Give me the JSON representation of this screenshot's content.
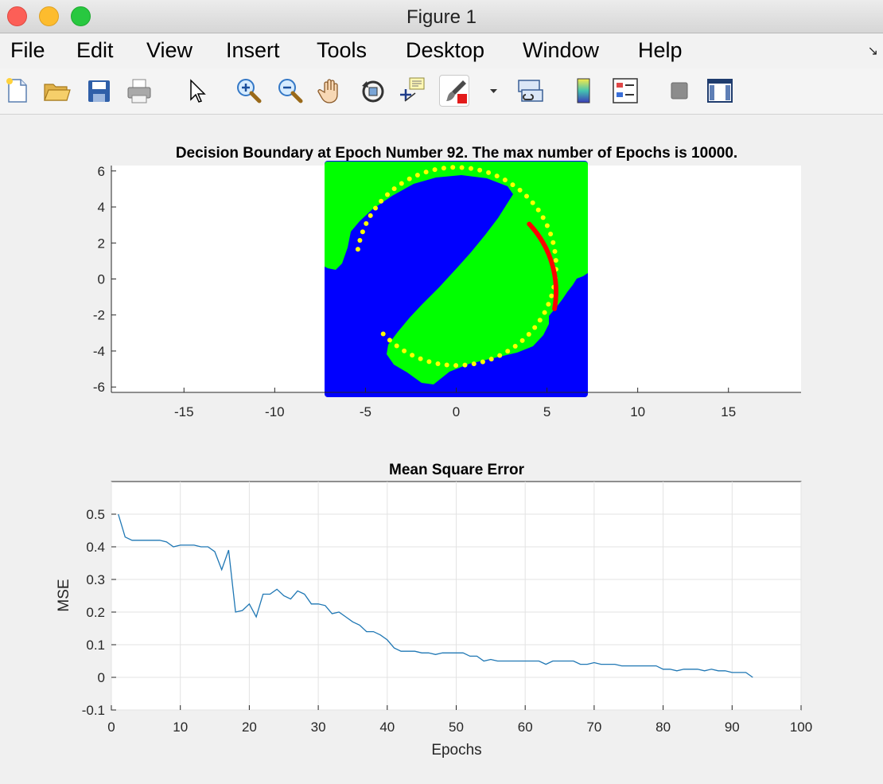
{
  "window": {
    "title": "Figure 1"
  },
  "menu": [
    "File",
    "Edit",
    "View",
    "Insert",
    "Tools",
    "Desktop",
    "Window",
    "Help"
  ],
  "toolbar_icons": [
    "new-figure-icon",
    "open-file-icon",
    "save-icon",
    "print-icon",
    "pointer-icon",
    "zoom-in-icon",
    "zoom-out-icon",
    "pan-hand-icon",
    "rotate-3d-icon",
    "data-cursor-icon",
    "brush-icon",
    "brush-dropdown-icon",
    "link-plot-icon",
    "colorbar-icon",
    "legend-icon",
    "hide-plot-tools-icon",
    "show-plot-tools-icon"
  ],
  "chart_data": [
    {
      "type": "scatter",
      "title": "Decision Boundary at Epoch Number 92. The max number of Epochs is 10000.",
      "xlim": [
        -19,
        19
      ],
      "ylim": [
        -6.3,
        6.3
      ],
      "xticks": [
        -15,
        -10,
        -5,
        0,
        5,
        10,
        15
      ],
      "yticks": [
        6,
        4,
        2,
        0,
        -2,
        -4,
        -6
      ],
      "region_colors": {
        "class_a": "#00ff00",
        "class_b": "#0000ff"
      },
      "series": [
        {
          "color": "#ffff00",
          "center": [
            0,
            0.7
          ],
          "radius": 5.5,
          "theta_start_deg": 170,
          "theta_end_deg": -137,
          "count": 60
        },
        {
          "color": "#ff0000",
          "center": [
            0,
            -0.7
          ],
          "radius": 5.5,
          "theta_start_deg": 43,
          "theta_end_deg": 350,
          "count": 60
        }
      ]
    },
    {
      "type": "line",
      "title": "Mean Square Error",
      "xlabel": "Epochs",
      "ylabel": "MSE",
      "xlim": [
        0,
        100
      ],
      "ylim": [
        -0.1,
        0.6
      ],
      "xticks": [
        0,
        10,
        20,
        30,
        40,
        50,
        60,
        70,
        80,
        90,
        100
      ],
      "yticks": [
        0.5,
        0.4,
        0.3,
        0.2,
        0.1,
        0,
        -0.1
      ],
      "grid": true,
      "line_color": "#1f77b4",
      "x_start": 1,
      "values": [
        0.5,
        0.43,
        0.42,
        0.42,
        0.42,
        0.42,
        0.42,
        0.415,
        0.4,
        0.405,
        0.405,
        0.405,
        0.4,
        0.4,
        0.385,
        0.33,
        0.39,
        0.2,
        0.205,
        0.225,
        0.185,
        0.255,
        0.255,
        0.27,
        0.25,
        0.24,
        0.265,
        0.255,
        0.225,
        0.225,
        0.22,
        0.195,
        0.2,
        0.185,
        0.17,
        0.16,
        0.14,
        0.14,
        0.13,
        0.115,
        0.09,
        0.08,
        0.08,
        0.08,
        0.075,
        0.075,
        0.07,
        0.075,
        0.075,
        0.075,
        0.075,
        0.065,
        0.065,
        0.05,
        0.055,
        0.05,
        0.05,
        0.05,
        0.05,
        0.05,
        0.05,
        0.05,
        0.04,
        0.05,
        0.05,
        0.05,
        0.05,
        0.04,
        0.04,
        0.045,
        0.04,
        0.04,
        0.04,
        0.035,
        0.035,
        0.035,
        0.035,
        0.035,
        0.035,
        0.025,
        0.025,
        0.02,
        0.025,
        0.025,
        0.025,
        0.02,
        0.025,
        0.02,
        0.02,
        0.015,
        0.015,
        0.015,
        0.0
      ]
    }
  ]
}
